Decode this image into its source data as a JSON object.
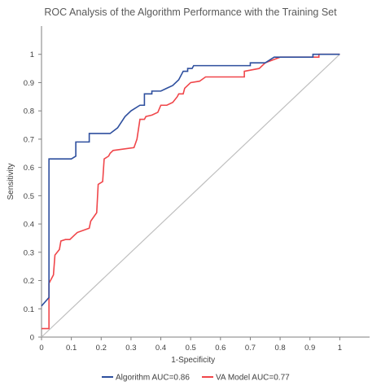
{
  "chart_data": {
    "type": "line",
    "title": "ROC Analysis of the Algorithm  Performance with the Training Set",
    "xlabel": "1-Specificity",
    "ylabel": "Sensitivity",
    "xlim": [
      0,
      1.1
    ],
    "ylim": [
      0,
      1.1
    ],
    "x_ticks": [
      "0",
      "0.1",
      "0.2",
      "0.3",
      "0.4",
      "0.5",
      "0.6",
      "0.7",
      "0.8",
      "0.9",
      "1"
    ],
    "y_ticks": [
      "0",
      "0.1",
      "0.2",
      "0.3",
      "0.4",
      "0.5",
      "0.6",
      "0.7",
      "0.8",
      "0.9",
      "1"
    ],
    "grid": false,
    "legend_position": "bottom",
    "series": [
      {
        "name": "Algorithm AUC=0.86",
        "color": "#2e4f9e",
        "points": [
          [
            0,
            0.11
          ],
          [
            0.025,
            0.14
          ],
          [
            0.025,
            0.63
          ],
          [
            0.1,
            0.63
          ],
          [
            0.115,
            0.64
          ],
          [
            0.115,
            0.69
          ],
          [
            0.16,
            0.69
          ],
          [
            0.16,
            0.72
          ],
          [
            0.23,
            0.72
          ],
          [
            0.255,
            0.74
          ],
          [
            0.28,
            0.78
          ],
          [
            0.3,
            0.8
          ],
          [
            0.33,
            0.82
          ],
          [
            0.345,
            0.82
          ],
          [
            0.345,
            0.86
          ],
          [
            0.37,
            0.86
          ],
          [
            0.37,
            0.87
          ],
          [
            0.4,
            0.87
          ],
          [
            0.42,
            0.88
          ],
          [
            0.44,
            0.89
          ],
          [
            0.46,
            0.91
          ],
          [
            0.475,
            0.94
          ],
          [
            0.49,
            0.94
          ],
          [
            0.49,
            0.95
          ],
          [
            0.505,
            0.95
          ],
          [
            0.51,
            0.96
          ],
          [
            0.7,
            0.96
          ],
          [
            0.7,
            0.97
          ],
          [
            0.75,
            0.97
          ],
          [
            0.78,
            0.99
          ],
          [
            0.91,
            0.99
          ],
          [
            0.91,
            1.0
          ],
          [
            1.0,
            1.0
          ]
        ]
      },
      {
        "name": "VA Model AUC=0.77",
        "color": "#f0464a",
        "points": [
          [
            0,
            0.03
          ],
          [
            0.025,
            0.03
          ],
          [
            0.025,
            0.19
          ],
          [
            0.04,
            0.22
          ],
          [
            0.045,
            0.29
          ],
          [
            0.06,
            0.31
          ],
          [
            0.065,
            0.34
          ],
          [
            0.08,
            0.345
          ],
          [
            0.095,
            0.345
          ],
          [
            0.11,
            0.36
          ],
          [
            0.12,
            0.37
          ],
          [
            0.16,
            0.385
          ],
          [
            0.165,
            0.41
          ],
          [
            0.185,
            0.44
          ],
          [
            0.19,
            0.54
          ],
          [
            0.205,
            0.55
          ],
          [
            0.21,
            0.63
          ],
          [
            0.225,
            0.64
          ],
          [
            0.23,
            0.65
          ],
          [
            0.24,
            0.66
          ],
          [
            0.31,
            0.67
          ],
          [
            0.32,
            0.7
          ],
          [
            0.33,
            0.77
          ],
          [
            0.345,
            0.77
          ],
          [
            0.35,
            0.78
          ],
          [
            0.37,
            0.785
          ],
          [
            0.39,
            0.795
          ],
          [
            0.4,
            0.82
          ],
          [
            0.42,
            0.82
          ],
          [
            0.44,
            0.83
          ],
          [
            0.455,
            0.85
          ],
          [
            0.46,
            0.86
          ],
          [
            0.475,
            0.86
          ],
          [
            0.48,
            0.88
          ],
          [
            0.5,
            0.9
          ],
          [
            0.53,
            0.905
          ],
          [
            0.55,
            0.92
          ],
          [
            0.68,
            0.92
          ],
          [
            0.68,
            0.94
          ],
          [
            0.73,
            0.95
          ],
          [
            0.75,
            0.97
          ],
          [
            0.8,
            0.99
          ],
          [
            0.93,
            0.99
          ],
          [
            0.93,
            1.0
          ],
          [
            1.0,
            1.0
          ]
        ]
      },
      {
        "name": "",
        "color": "#bfbfbf",
        "points": [
          [
            0,
            0
          ],
          [
            1,
            1
          ]
        ]
      }
    ]
  }
}
